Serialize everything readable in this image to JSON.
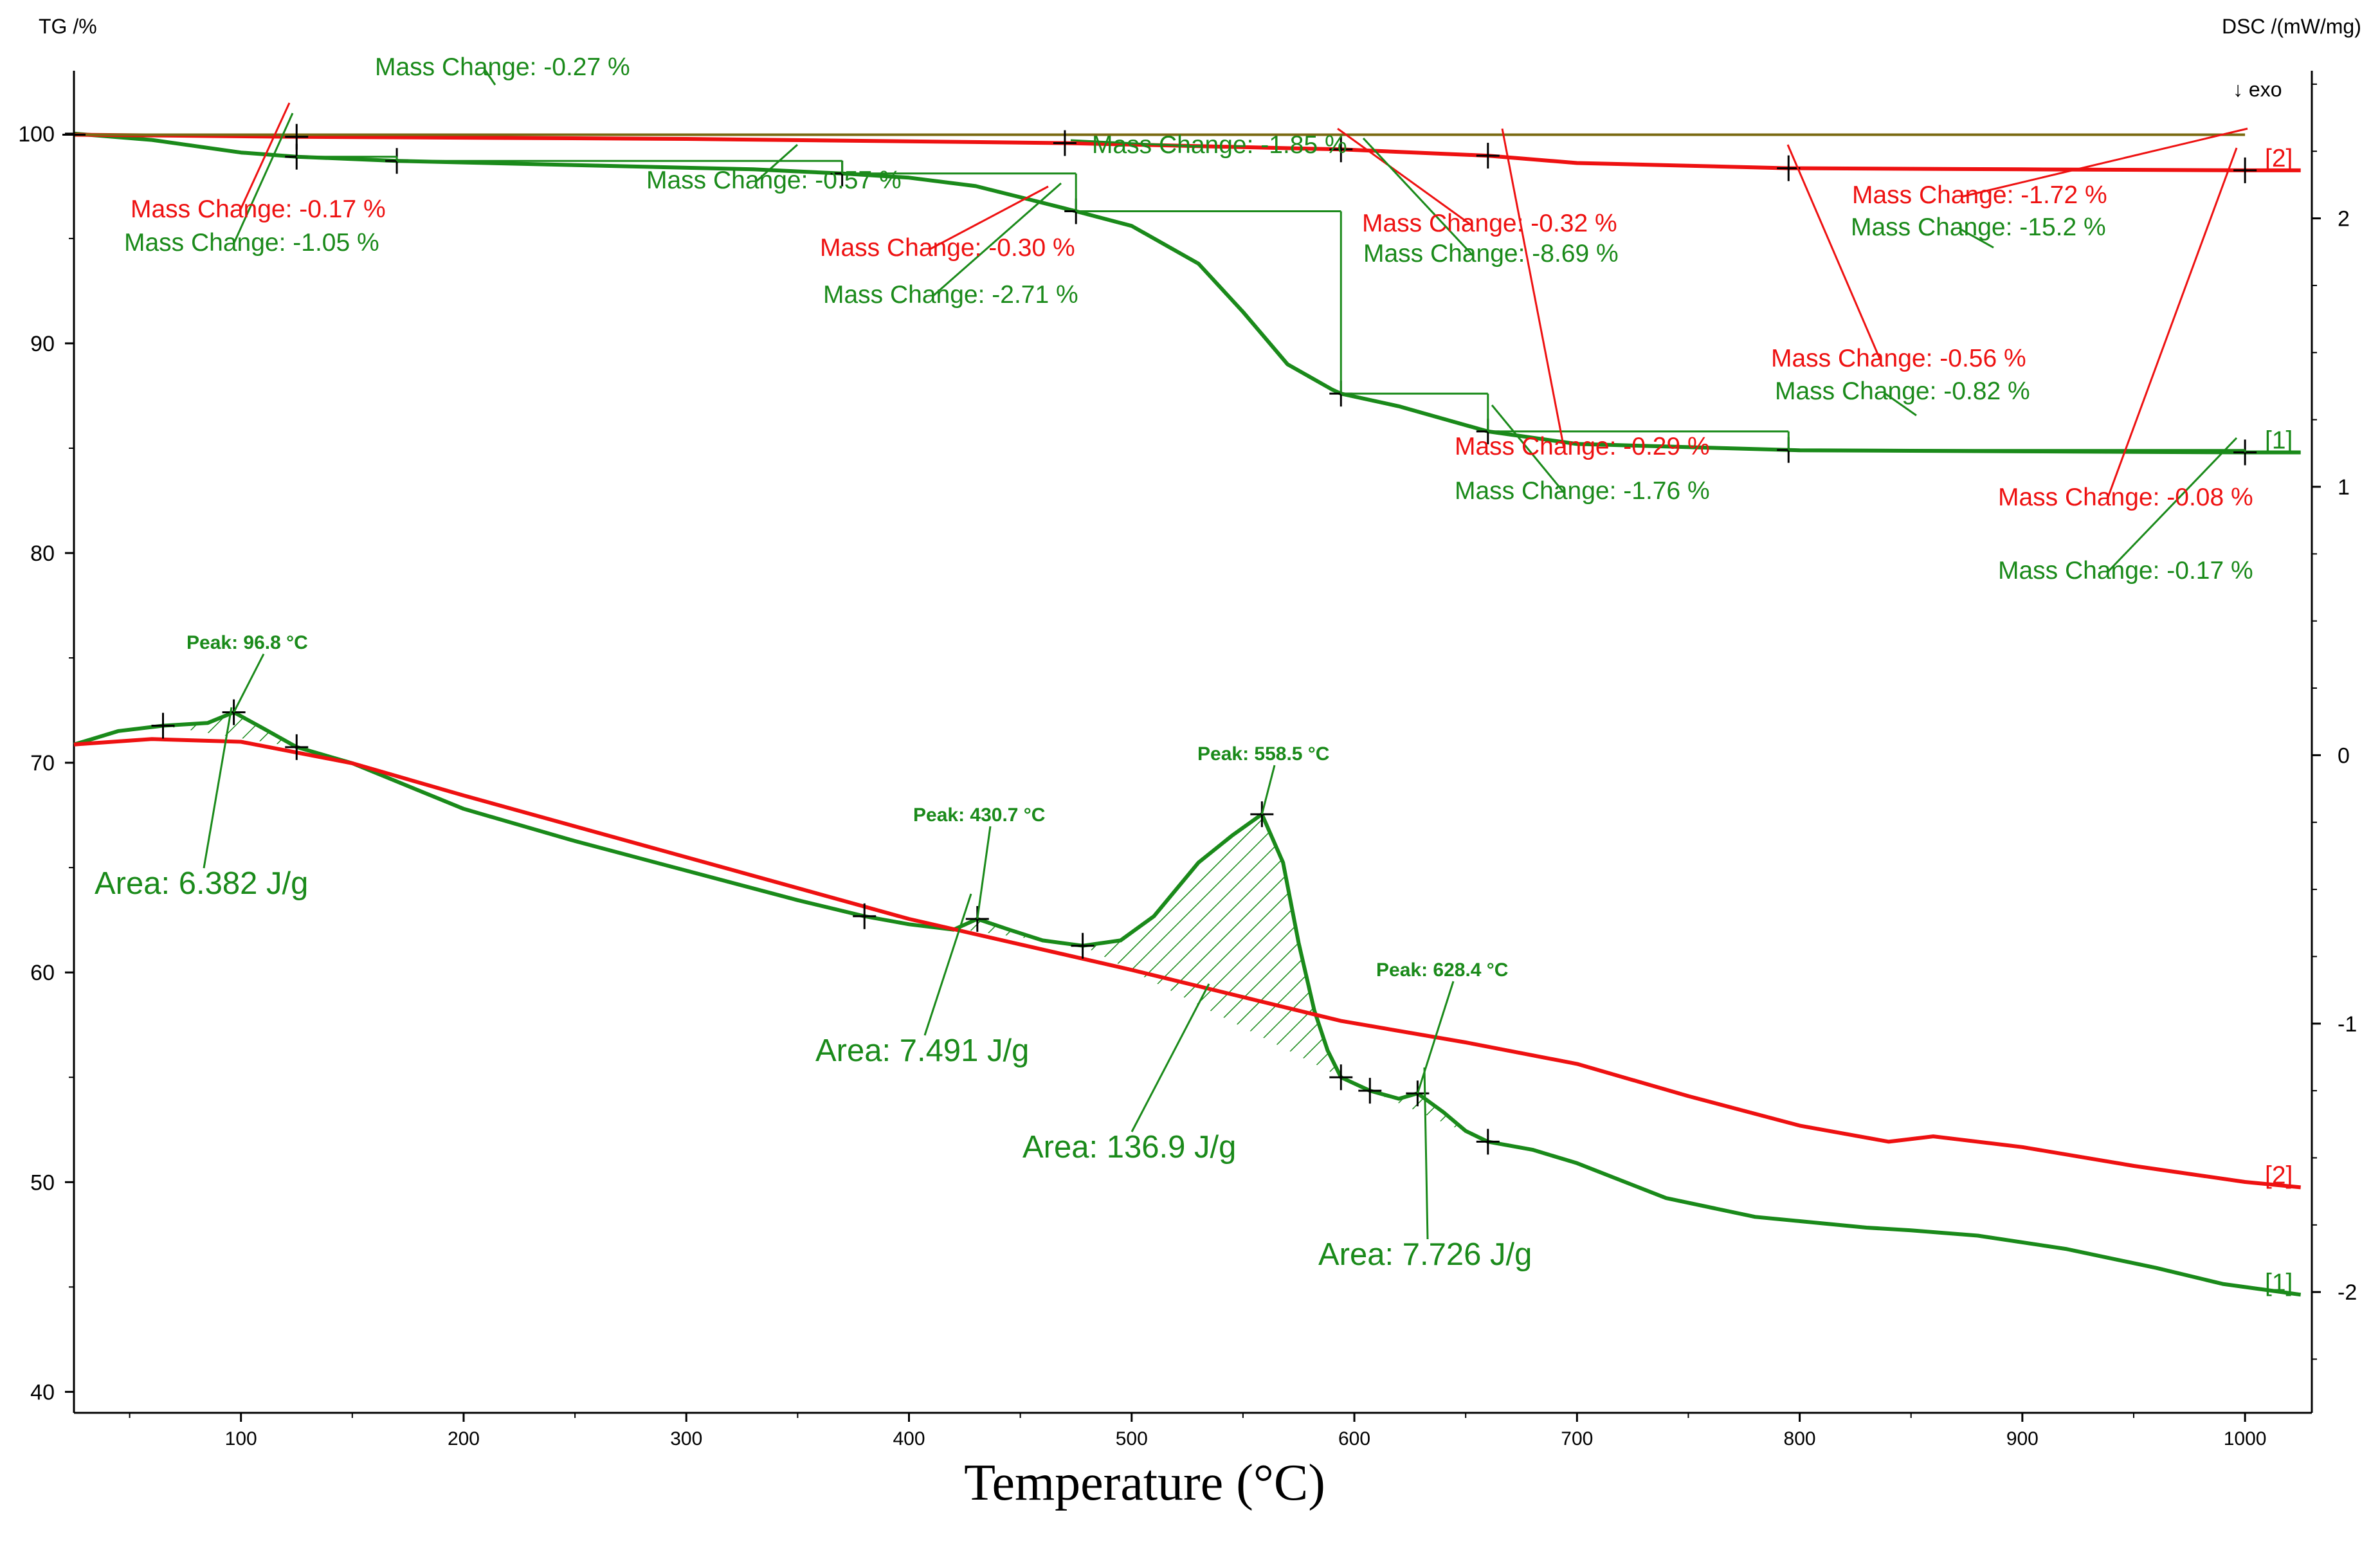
{
  "chart_data": {
    "type": "line",
    "xlabel": "Temperature (°C)",
    "y_left_label": "TG /%",
    "y_right_label": "DSC /(mW/mg)",
    "exo_label": "↓ exo",
    "xlim": [
      25,
      1030
    ],
    "ylim_left": [
      39,
      103
    ],
    "ylim_right": [
      -2.45,
      2.55
    ],
    "x_ticks": [
      100,
      200,
      300,
      400,
      500,
      600,
      700,
      800,
      900,
      1000
    ],
    "y_left_ticks": [
      100,
      90,
      80,
      70,
      60,
      50,
      40
    ],
    "y_right_ticks": [
      2,
      1,
      0,
      -1,
      -2
    ],
    "colors": {
      "green": "#1a8a1a",
      "red": "#ee1111",
      "olive": "#7a6a12",
      "black": "#000000"
    },
    "series": [
      {
        "name": "TG [1]",
        "tag": "[1]",
        "axis": "left",
        "color": "#1a8a1a",
        "x": [
          25,
          60,
          100,
          125,
          170,
          250,
          330,
          370,
          400,
          430,
          460,
          475,
          500,
          530,
          550,
          570,
          590,
          594,
          620,
          660,
          700,
          800,
          900,
          1000,
          1025
        ],
        "y": [
          100,
          99.7,
          99.1,
          98.9,
          98.7,
          98.5,
          98.3,
          98.1,
          97.9,
          97.5,
          96.7,
          96.3,
          95.6,
          93.8,
          91.5,
          89.0,
          87.8,
          87.6,
          87.0,
          85.8,
          85.2,
          84.9,
          84.85,
          84.8,
          84.8
        ]
      },
      {
        "name": "TG [2]",
        "tag": "[2]",
        "axis": "left",
        "color": "#ee1111",
        "x": [
          25,
          125,
          300,
          470,
          594,
          660,
          700,
          795,
          900,
          1000,
          1025
        ],
        "y": [
          99.95,
          99.85,
          99.75,
          99.55,
          99.25,
          98.95,
          98.6,
          98.35,
          98.3,
          98.25,
          98.25
        ]
      },
      {
        "name": "Baseline",
        "tag": "",
        "axis": "left",
        "color": "#7a6a12",
        "x": [
          25,
          1000
        ],
        "y": [
          99.95,
          99.95
        ]
      },
      {
        "name": "DSC [1]",
        "tag": "[1]",
        "axis": "right",
        "color": "#1a8a1a",
        "x": [
          25,
          45,
          65,
          85,
          96.8,
          110,
          125,
          150,
          200,
          250,
          300,
          350,
          380,
          400,
          420,
          430.7,
          445,
          460,
          478,
          495,
          510,
          530,
          545,
          558.5,
          568,
          575,
          582,
          588,
          594,
          607,
          620,
          628.4,
          640,
          650,
          660,
          680,
          700,
          740,
          780,
          830,
          850,
          880,
          920,
          960,
          990,
          1025
        ],
        "y": [
          0.04,
          0.09,
          0.11,
          0.12,
          0.16,
          0.1,
          0.03,
          -0.03,
          -0.2,
          -0.32,
          -0.43,
          -0.54,
          -0.6,
          -0.63,
          -0.65,
          -0.61,
          -0.65,
          -0.69,
          -0.71,
          -0.69,
          -0.6,
          -0.4,
          -0.3,
          -0.22,
          -0.4,
          -0.7,
          -0.95,
          -1.1,
          -1.2,
          -1.25,
          -1.28,
          -1.26,
          -1.33,
          -1.4,
          -1.44,
          -1.47,
          -1.52,
          -1.65,
          -1.72,
          -1.76,
          -1.77,
          -1.79,
          -1.84,
          -1.91,
          -1.97,
          -2.01
        ]
      },
      {
        "name": "DSC [2]",
        "tag": "[2]",
        "axis": "right",
        "color": "#ee1111",
        "x": [
          25,
          60,
          100,
          150,
          200,
          300,
          400,
          500,
          594,
          650,
          700,
          750,
          800,
          840,
          860,
          900,
          950,
          1000,
          1025
        ],
        "y": [
          0.04,
          0.06,
          0.05,
          -0.03,
          -0.15,
          -0.38,
          -0.61,
          -0.8,
          -0.99,
          -1.07,
          -1.15,
          -1.27,
          -1.38,
          -1.44,
          -1.42,
          -1.46,
          -1.53,
          -1.59,
          -1.61
        ]
      }
    ],
    "mass_change_annotations": [
      {
        "text": "Mass Change: -0.27 %",
        "color": "green"
      },
      {
        "text": "Mass Change: -0.17 %",
        "color": "red"
      },
      {
        "text": "Mass Change: -1.05 %",
        "color": "green"
      },
      {
        "text": "Mass Change: -0.57 %",
        "color": "green"
      },
      {
        "text": "Mass Change: -1.85 %",
        "color": "green"
      },
      {
        "text": "Mass Change: -0.30 %",
        "color": "red"
      },
      {
        "text": "Mass Change: -2.71 %",
        "color": "green"
      },
      {
        "text": "Mass Change: -0.32 %",
        "color": "red"
      },
      {
        "text": "Mass Change: -8.69 %",
        "color": "green"
      },
      {
        "text": "Mass Change: -1.72 %",
        "color": "red"
      },
      {
        "text": "Mass Change: -15.2 %",
        "color": "green"
      },
      {
        "text": "Mass Change: -0.56 %",
        "color": "red"
      },
      {
        "text": "Mass Change: -0.82 %",
        "color": "green"
      },
      {
        "text": "Mass Change: -0.29 %",
        "color": "red"
      },
      {
        "text": "Mass Change: -1.76 %",
        "color": "green"
      },
      {
        "text": "Mass Change: -0.08 %",
        "color": "red"
      },
      {
        "text": "Mass Change: -0.17 %",
        "color": "green"
      }
    ],
    "peak_annotations": [
      {
        "text": "Peak: 96.8 °C",
        "x": 96.8
      },
      {
        "text": "Peak: 430.7 °C",
        "x": 430.7
      },
      {
        "text": "Peak: 558.5 °C",
        "x": 558.5
      },
      {
        "text": "Peak: 628.4 °C",
        "x": 628.4
      }
    ],
    "area_annotations": [
      {
        "text": "Area: 6.382 J/g"
      },
      {
        "text": "Area: 7.491 J/g"
      },
      {
        "text": "Area: 136.9 J/g"
      },
      {
        "text": "Area: 7.726 J/g"
      }
    ]
  }
}
